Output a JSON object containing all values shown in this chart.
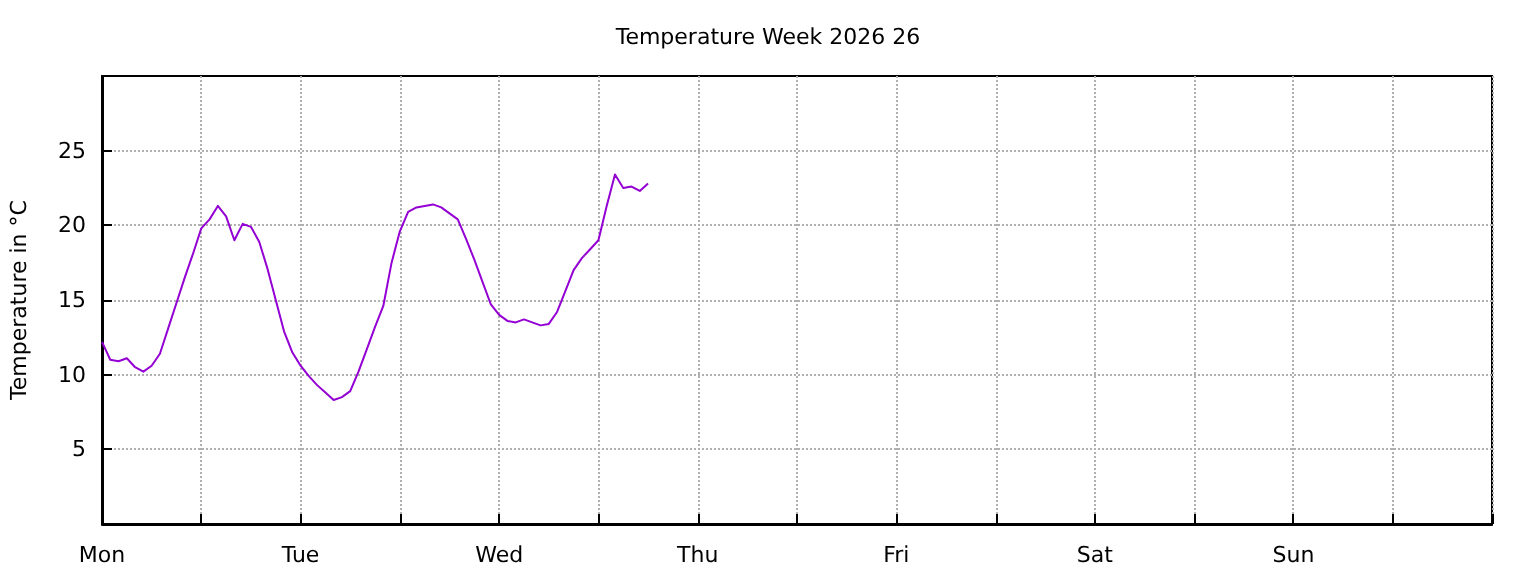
{
  "chart_data": {
    "type": "line",
    "title": "Temperature Week 2026 26",
    "ylabel": "Temperature in °C",
    "ylim": [
      0,
      30
    ],
    "yticks": [
      5,
      10,
      15,
      20,
      25
    ],
    "grid": true,
    "marker": "none",
    "line_style": "solid",
    "categories": [
      "Mon",
      null,
      null,
      null,
      null,
      null,
      null,
      null,
      null,
      null,
      null,
      null,
      null,
      null,
      null,
      null,
      null,
      null,
      null,
      null,
      null,
      null,
      null,
      null,
      "Tue",
      null,
      null,
      null,
      null,
      null,
      null,
      null,
      null,
      null,
      null,
      null,
      null,
      null,
      null,
      null,
      null,
      null,
      null,
      null,
      null,
      null,
      null,
      null,
      "Wed",
      null,
      null,
      null,
      null,
      null,
      null,
      null,
      null,
      null,
      null,
      null,
      null,
      null,
      null,
      null,
      null,
      null,
      null,
      null,
      null,
      null,
      null,
      null,
      "Thu",
      null,
      null,
      null,
      null,
      null,
      null,
      null,
      null,
      null,
      null,
      null,
      null,
      null,
      null,
      null,
      null,
      null,
      null,
      null,
      null,
      null,
      null,
      null,
      "Fri",
      null,
      null,
      null,
      null,
      null,
      null,
      null,
      null,
      null,
      null,
      null,
      null,
      null,
      null,
      null,
      null,
      null,
      null,
      null,
      null,
      null,
      null,
      null,
      "Sat",
      null,
      null,
      null,
      null,
      null,
      null,
      null,
      null,
      null,
      null,
      null,
      null,
      null,
      null,
      null,
      null,
      null,
      null,
      null,
      null,
      null,
      null,
      null,
      "Sun",
      null,
      null,
      null,
      null,
      null,
      null,
      null,
      null,
      null,
      null,
      null,
      null,
      null,
      null,
      null,
      null,
      null,
      null,
      null,
      null,
      null,
      null,
      null,
      null
    ],
    "series": [
      {
        "color": "#9400d3",
        "values": [
          12.2,
          11.0,
          10.9,
          11.1,
          10.5,
          10.2,
          10.6,
          11.4,
          13.1,
          14.8,
          16.5,
          18.1,
          19.8,
          20.4,
          21.3,
          20.6,
          19.0,
          20.1,
          19.9,
          18.9,
          17.1,
          15.0,
          12.9,
          11.5,
          10.6,
          9.9,
          9.3,
          8.8,
          8.3,
          8.5,
          8.9,
          10.2,
          11.7,
          13.2,
          14.6,
          17.5,
          19.6,
          20.9,
          21.2,
          21.3,
          21.4,
          21.2,
          20.8,
          20.4,
          19.1,
          17.7,
          16.2,
          14.7,
          14.0,
          13.6,
          13.5,
          13.7,
          13.5,
          13.3,
          13.4,
          14.2,
          15.6,
          17.0,
          17.8,
          18.4,
          19.0,
          21.3,
          23.4,
          22.5,
          22.6,
          22.3,
          22.8,
          null,
          null,
          null,
          null,
          null,
          null,
          null,
          null,
          null,
          null,
          null,
          null,
          null,
          null,
          null,
          null,
          null,
          null,
          null,
          null,
          null,
          null,
          null,
          null,
          null,
          null,
          null,
          null,
          null,
          null,
          null,
          null,
          null,
          null,
          null,
          null,
          null,
          null,
          null,
          null,
          null,
          null,
          null,
          null,
          null,
          null,
          null,
          null,
          null,
          null,
          null,
          null,
          null,
          null,
          null,
          null,
          null,
          null,
          null,
          null,
          null,
          null,
          null,
          null,
          null,
          null,
          null,
          null,
          null,
          null,
          null,
          null,
          null,
          null,
          null,
          null,
          null,
          null,
          null,
          null,
          null,
          null,
          null,
          null,
          null,
          null,
          null,
          null,
          null,
          null,
          null,
          null,
          null,
          null,
          null,
          null,
          null,
          null,
          null,
          null,
          null,
          null
        ]
      }
    ]
  }
}
